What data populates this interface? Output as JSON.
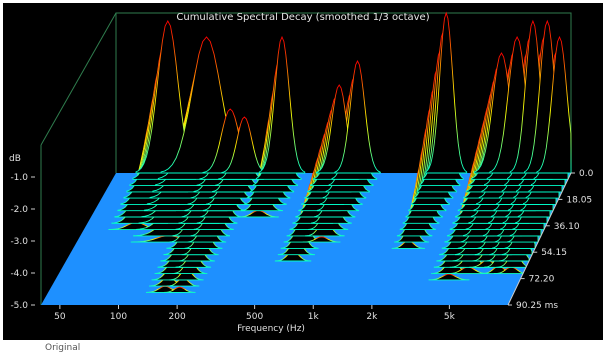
{
  "chart_data": {
    "type": "waterfall",
    "title": "Cumulative Spectral Decay (smoothed 1/3 octave)",
    "xlabel": "Frequency (Hz)",
    "ylabel": "dB",
    "zlabel": "ms",
    "x_scale": "log",
    "xlim": [
      40,
      10000
    ],
    "x_ticks": [
      {
        "value": 50,
        "label": "50"
      },
      {
        "value": 100,
        "label": "100"
      },
      {
        "value": 200,
        "label": "200"
      },
      {
        "value": 500,
        "label": "500"
      },
      {
        "value": 1000,
        "label": "1k"
      },
      {
        "value": 2000,
        "label": "2k"
      },
      {
        "value": 5000,
        "label": "5k"
      }
    ],
    "ylim": [
      -5.0,
      0.0
    ],
    "y_ticks": [
      {
        "value": -1,
        "label": "-1.0"
      },
      {
        "value": -2,
        "label": "-2.0"
      },
      {
        "value": -3,
        "label": "-3.0"
      },
      {
        "value": -4,
        "label": "-4.0"
      },
      {
        "value": -5,
        "label": "-5.0"
      }
    ],
    "time_ticks": [
      {
        "value": 0.0,
        "label": "0.0"
      },
      {
        "value": 18.05,
        "label": "18.05"
      },
      {
        "value": 36.1,
        "label": "36.10"
      },
      {
        "value": 54.15,
        "label": "54.15"
      },
      {
        "value": 72.2,
        "label": "72.20"
      },
      {
        "value": 90.25,
        "label": "90.25 ms"
      }
    ],
    "floor_color": "#1e90ff",
    "background": "#000000",
    "color_scale": [
      "#00ffcc",
      "#ffff00",
      "#ff0000"
    ],
    "resonances": [
      {
        "freq": 75,
        "peak": 0.95,
        "decay": 0.45,
        "width": 0.07
      },
      {
        "freq": 120,
        "peak": 0.85,
        "decay": 0.55,
        "width": 0.1
      },
      {
        "freq": 160,
        "peak": 0.4,
        "decay": 1.0,
        "width": 0.06
      },
      {
        "freq": 190,
        "peak": 0.35,
        "decay": 1.0,
        "width": 0.05
      },
      {
        "freq": 300,
        "peak": 0.85,
        "decay": 0.35,
        "width": 0.05
      },
      {
        "freq": 600,
        "peak": 0.55,
        "decay": 0.75,
        "width": 0.05
      },
      {
        "freq": 750,
        "peak": 0.7,
        "decay": 0.55,
        "width": 0.05
      },
      {
        "freq": 2200,
        "peak": 1.0,
        "decay": 0.6,
        "width": 0.045
      },
      {
        "freq": 4300,
        "peak": 0.75,
        "decay": 0.85,
        "width": 0.06
      },
      {
        "freq": 5200,
        "peak": 0.85,
        "decay": 0.8,
        "width": 0.06
      },
      {
        "freq": 6300,
        "peak": 0.95,
        "decay": 0.75,
        "width": 0.05
      },
      {
        "freq": 7500,
        "peak": 0.95,
        "decay": 0.8,
        "width": 0.05
      },
      {
        "freq": 8700,
        "peak": 0.85,
        "decay": 0.8,
        "width": 0.05
      }
    ]
  },
  "footer": "Original"
}
